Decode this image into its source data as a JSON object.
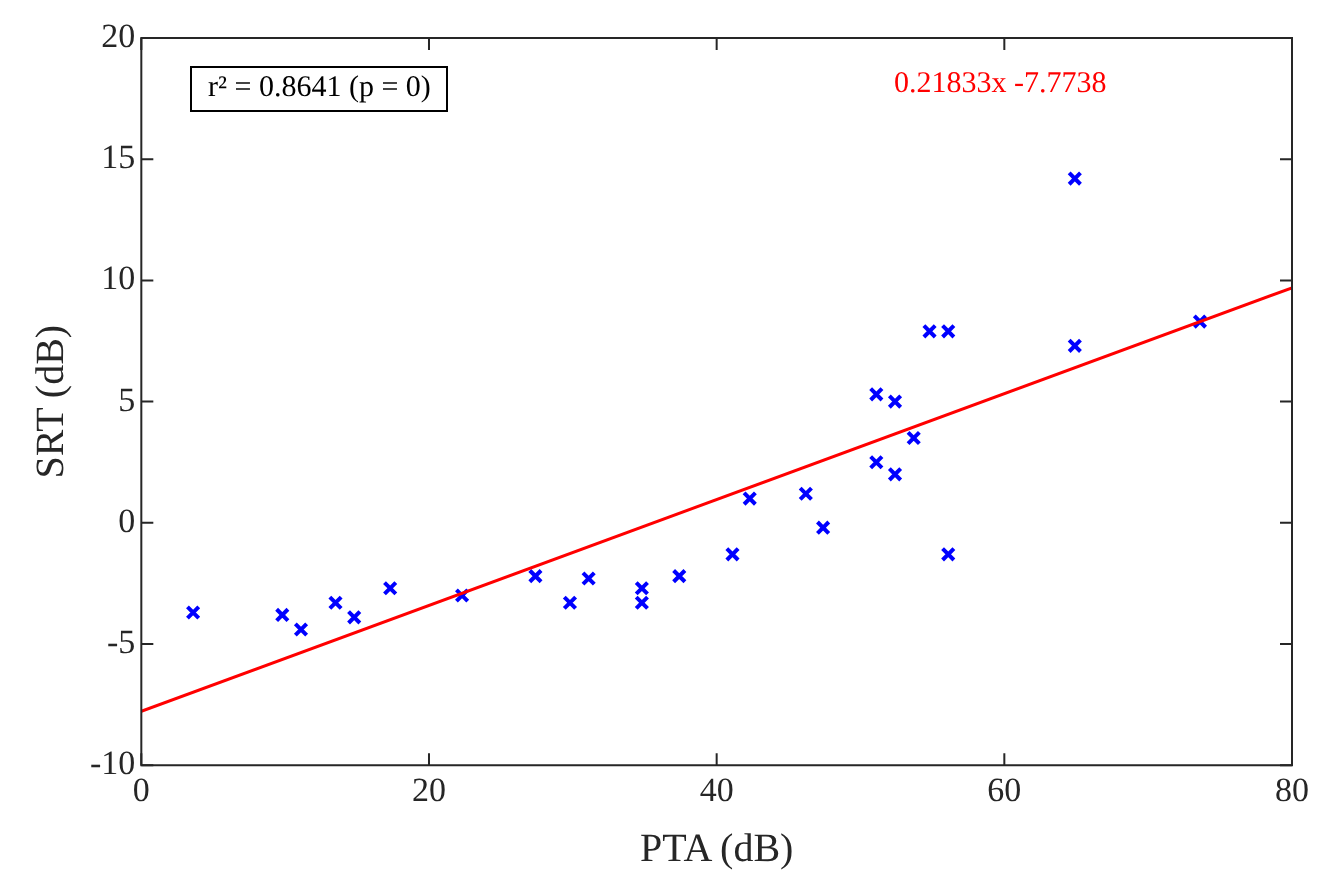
{
  "chart_data": {
    "type": "scatter",
    "xlabel": "PTA (dB)",
    "ylabel": "SRT (dB)",
    "xlim": [
      0,
      80
    ],
    "xticks": [
      0,
      20,
      40,
      60,
      80
    ],
    "ylim": [
      -10,
      20
    ],
    "yticks": [
      -10,
      -5,
      0,
      5,
      10,
      15,
      20
    ],
    "grid": false,
    "legend": false,
    "marker": "cross",
    "series": [
      {
        "color": "#0000ff",
        "x": [
          3.6,
          9.8,
          11.1,
          13.5,
          14.8,
          17.3,
          22.3,
          27.4,
          29.8,
          31.1,
          34.8,
          34.8,
          37.4,
          41.1,
          42.3,
          46.2,
          47.4,
          51.1,
          51.1,
          52.4,
          52.4,
          53.7,
          54.8,
          56.1,
          56.1,
          64.9,
          64.9,
          73.6
        ],
        "values": [
          -3.7,
          -3.8,
          -4.4,
          -3.3,
          -3.9,
          -2.7,
          -3.0,
          -2.2,
          -3.3,
          -2.3,
          -2.7,
          -3.3,
          -2.2,
          -1.3,
          1.0,
          1.2,
          -0.2,
          5.3,
          2.5,
          5.0,
          2.0,
          3.5,
          7.9,
          7.9,
          -1.3,
          14.2,
          7.3,
          8.3
        ]
      },
      {
        "type": "line",
        "color": "#ff0000",
        "x": [
          0,
          80
        ],
        "values": [
          -7.7738,
          9.6926
        ],
        "marker": "none"
      }
    ],
    "annotations": [
      "r² = 0.8641 (p = 0)",
      "0.21833x -7.7738"
    ]
  }
}
